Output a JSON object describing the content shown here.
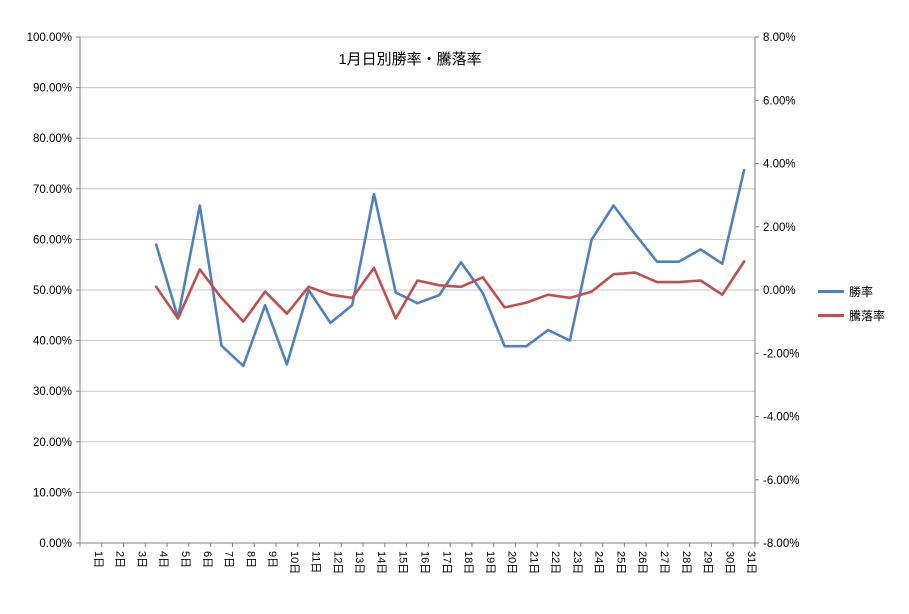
{
  "chart_data": {
    "type": "line",
    "title": "1月日別勝率・騰落率",
    "categories": [
      "1日",
      "2日",
      "3日",
      "4日",
      "5日",
      "6日",
      "7日",
      "8日",
      "9日",
      "10日",
      "11日",
      "12日",
      "13日",
      "14日",
      "15日",
      "16日",
      "17日",
      "18日",
      "19日",
      "20日",
      "21日",
      "22日",
      "23日",
      "24日",
      "25日",
      "26日",
      "27日",
      "28日",
      "29日",
      "30日",
      "31日"
    ],
    "left_axis": {
      "min": 0,
      "max": 100,
      "tick_labels": [
        "0.00%",
        "10.00%",
        "20.00%",
        "30.00%",
        "40.00%",
        "50.00%",
        "60.00%",
        "70.00%",
        "80.00%",
        "90.00%",
        "100.00%"
      ]
    },
    "right_axis": {
      "min": -8,
      "max": 8,
      "tick_labels": [
        "-8.00%",
        "-6.00%",
        "-4.00%",
        "-2.00%",
        "0.00%",
        "2.00%",
        "4.00%",
        "6.00%",
        "8.00%"
      ]
    },
    "series": [
      {
        "name": "勝率",
        "axis": "left",
        "color": "#4F81BD",
        "values": [
          null,
          null,
          null,
          59,
          44.5,
          66.7,
          39,
          35,
          47,
          35.3,
          50,
          43.5,
          47,
          69,
          49.5,
          47.4,
          49,
          55.5,
          49.4,
          38.9,
          38.9,
          42.1,
          40,
          60,
          66.7,
          61,
          55.6,
          55.6,
          58,
          55.2,
          73.7
        ]
      },
      {
        "name": "騰落率",
        "axis": "right",
        "color": "#C0504D",
        "values": [
          null,
          null,
          null,
          0.1,
          -0.9,
          0.65,
          -0.25,
          -1.0,
          -0.05,
          -0.75,
          0.1,
          -0.15,
          -0.25,
          0.7,
          -0.9,
          0.3,
          0.15,
          0.1,
          0.4,
          -0.55,
          -0.4,
          -0.15,
          -0.25,
          -0.05,
          0.5,
          0.55,
          0.25,
          0.25,
          0.3,
          -0.15,
          0.9
        ]
      }
    ],
    "grid": "horizontal",
    "legend_position": "right"
  }
}
